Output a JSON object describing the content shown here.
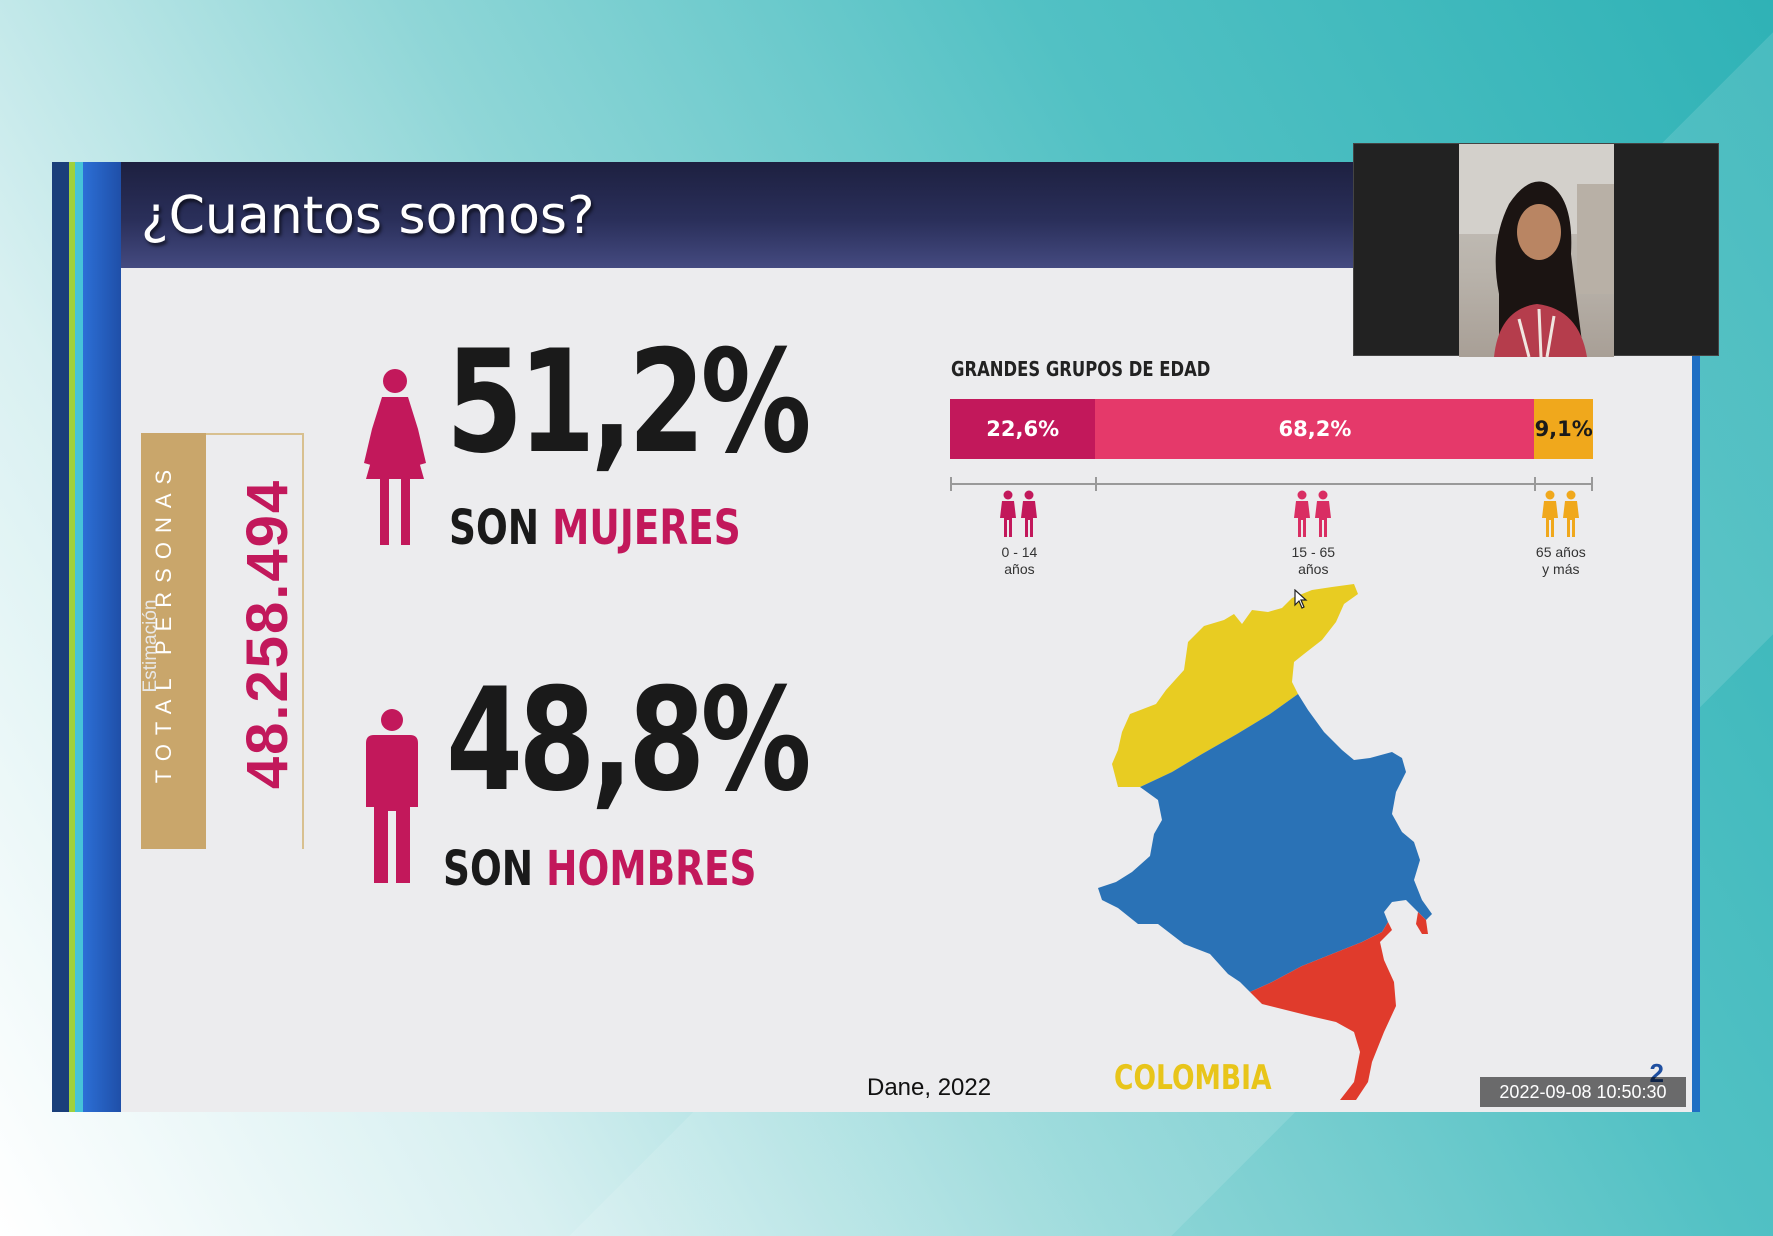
{
  "slide": {
    "title": "¿Cuantos somos?",
    "total_label": "TOTAL PERSONAS",
    "estimate_label": "Estimación",
    "total_value": "48.258.494",
    "women": {
      "percent": "51,2%",
      "prefix": "SON",
      "label": "MUJERES"
    },
    "men": {
      "percent": "48,8%",
      "prefix": "SON",
      "label": "HOMBRES"
    },
    "source": "Dane, 2022",
    "country": "COLOMBIA",
    "page_number": "2"
  },
  "chart_data": {
    "type": "bar",
    "title": "GRANDES GRUPOS DE EDAD",
    "stacked": true,
    "categories": [
      "0 - 14 años",
      "15 - 65 años",
      "65 años y más"
    ],
    "values": [
      22.6,
      68.2,
      9.1
    ],
    "value_labels": [
      "22,6%",
      "68,2%",
      "9,1%"
    ],
    "category_lines": [
      [
        "0 - 14",
        "años"
      ],
      [
        "15 - 65",
        "años"
      ],
      [
        "65 años",
        "y más"
      ]
    ],
    "colors": [
      "#c2185b",
      "#e5396a",
      "#f0a81c"
    ]
  },
  "recording": {
    "timestamp": "2022-09-08  10:50:30"
  },
  "colors": {
    "accent": "#c2185b",
    "title_bar": "#2a2f5a",
    "gold": "#c9a66b"
  }
}
